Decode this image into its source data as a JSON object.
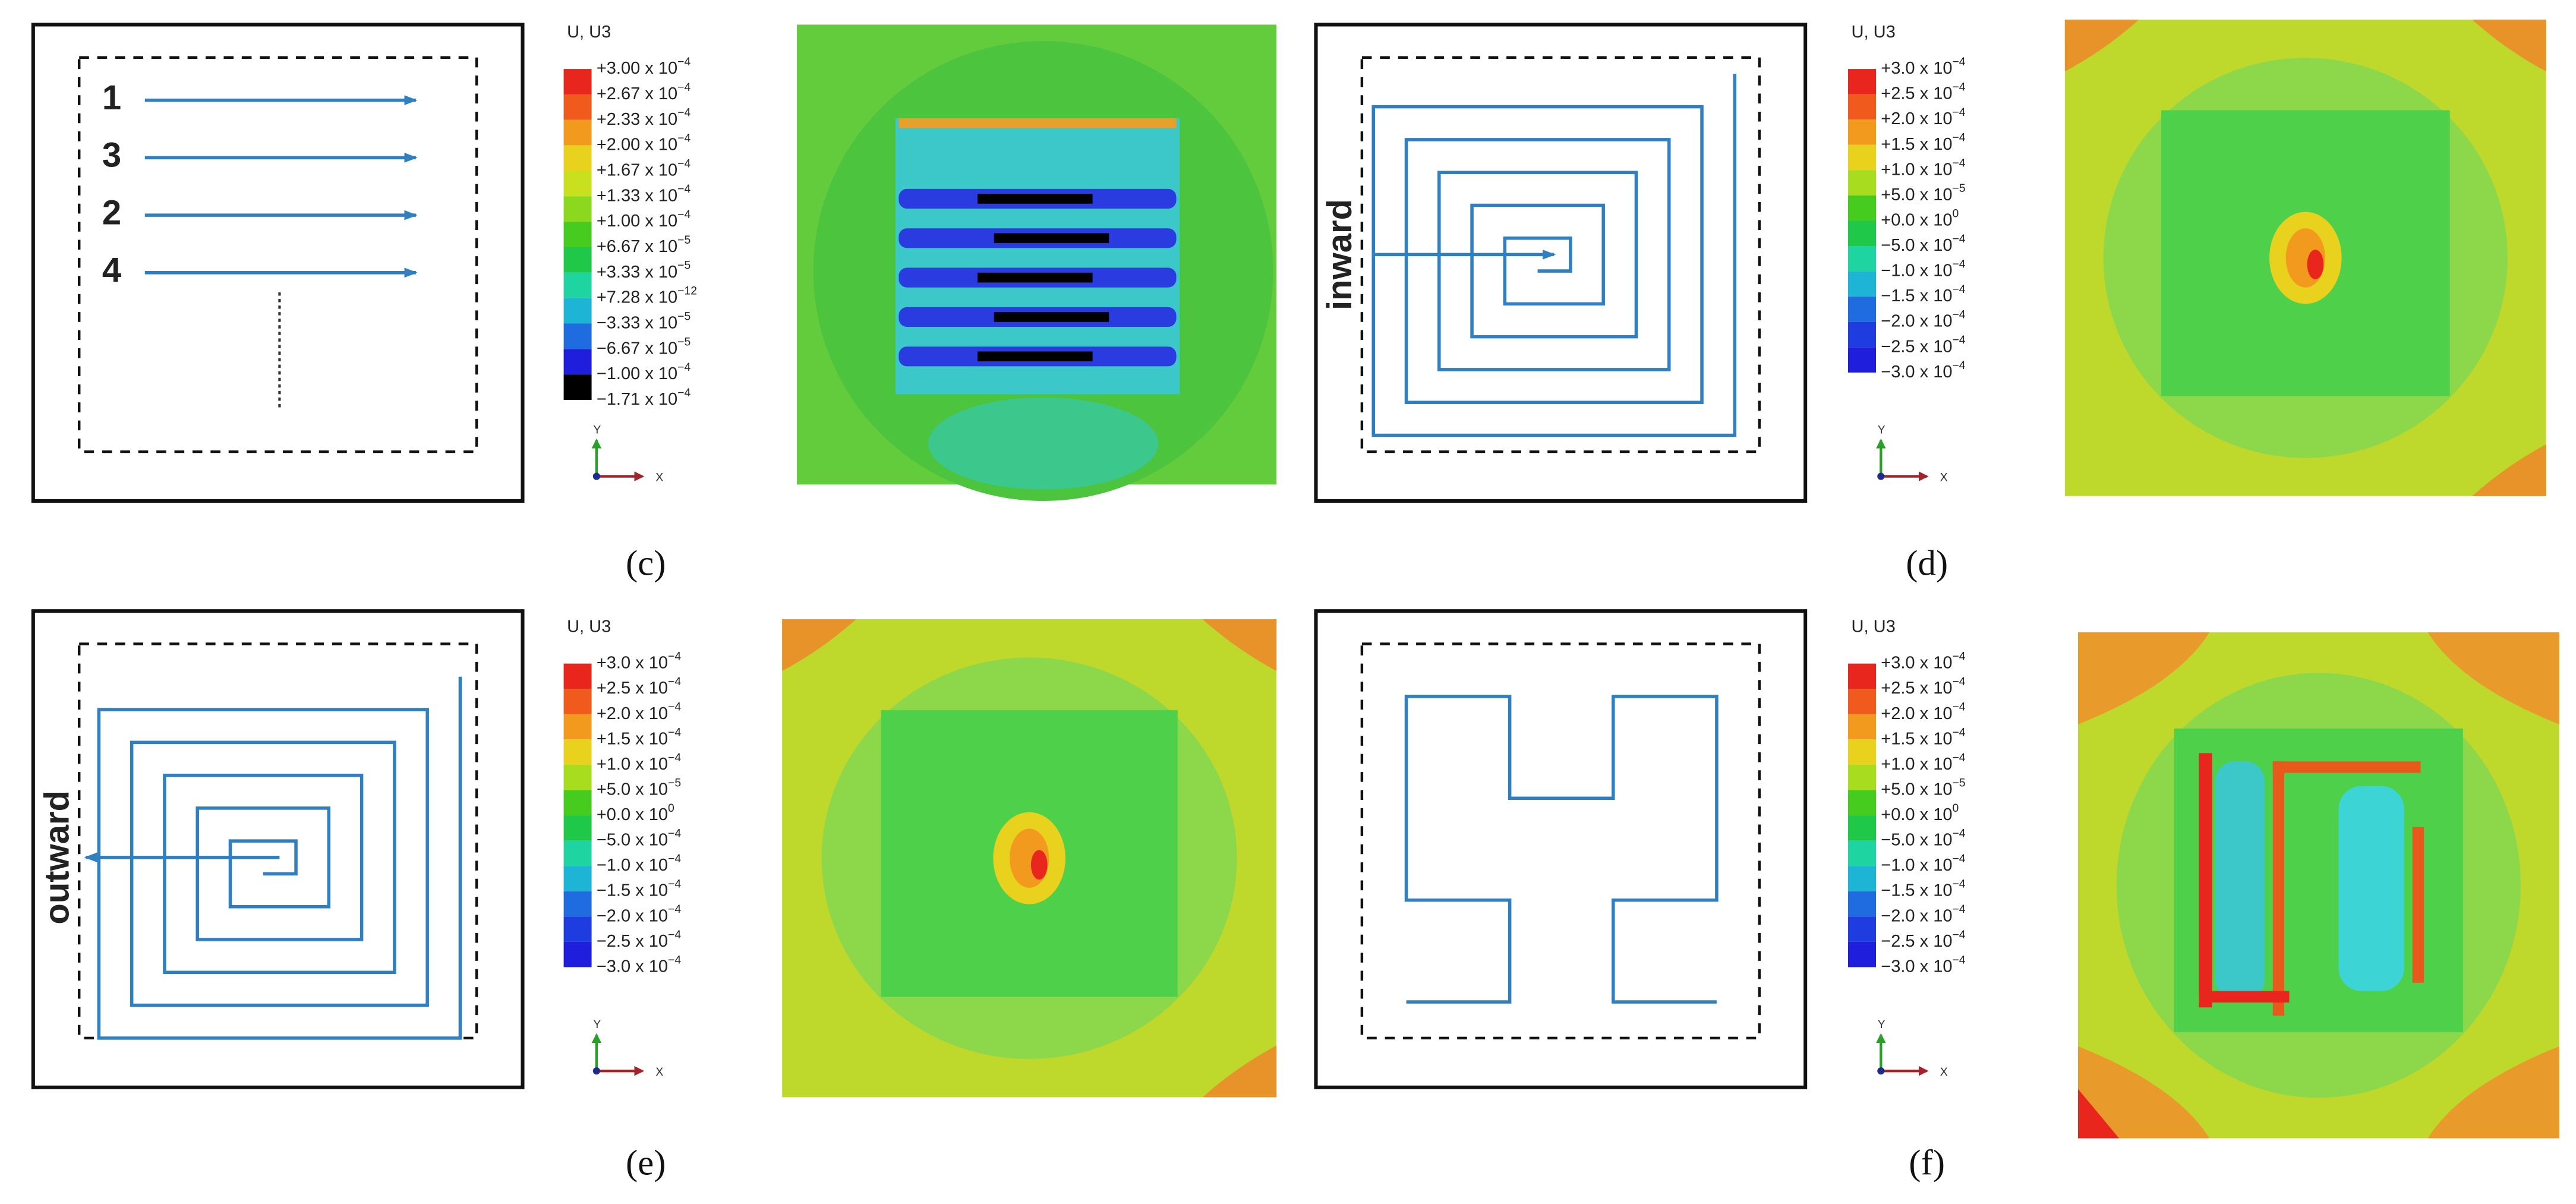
{
  "panels": [
    {
      "label": "(c)",
      "legend": {
        "title": "U, U3",
        "entries": [
          {
            "mantissa": "+3.00 x 10",
            "exponent": "−4"
          },
          {
            "mantissa": "+2.67 x 10",
            "exponent": "−4"
          },
          {
            "mantissa": "+2.33 x 10",
            "exponent": "−4"
          },
          {
            "mantissa": "+2.00 x 10",
            "exponent": "−4"
          },
          {
            "mantissa": "+1.67 x 10",
            "exponent": "−4"
          },
          {
            "mantissa": "+1.33 x 10",
            "exponent": "−4"
          },
          {
            "mantissa": "+1.00 x 10",
            "exponent": "−4"
          },
          {
            "mantissa": "+6.67 x 10",
            "exponent": "−5"
          },
          {
            "mantissa": "+3.33 x 10",
            "exponent": "−5"
          },
          {
            "mantissa": "+7.28 x 10",
            "exponent": "−12"
          },
          {
            "mantissa": "−3.33 x 10",
            "exponent": "−5"
          },
          {
            "mantissa": "−6.67 x 10",
            "exponent": "−5"
          },
          {
            "mantissa": "−1.00 x 10",
            "exponent": "−4"
          },
          {
            "mantissa": "−1.71 x 10",
            "exponent": "−4"
          }
        ]
      },
      "axes": {
        "y": "Y",
        "x": "X"
      },
      "path_labels": [
        "1",
        "3",
        "2",
        "4"
      ]
    },
    {
      "label": "(d)",
      "legend": {
        "title": "U, U3",
        "entries": [
          {
            "mantissa": "+3.0 x 10",
            "exponent": "−4"
          },
          {
            "mantissa": "+2.5 x 10",
            "exponent": "−4"
          },
          {
            "mantissa": "+2.0 x 10",
            "exponent": "−4"
          },
          {
            "mantissa": "+1.5 x 10",
            "exponent": "−4"
          },
          {
            "mantissa": "+1.0 x 10",
            "exponent": "−4"
          },
          {
            "mantissa": "+5.0 x 10",
            "exponent": "−5"
          },
          {
            "mantissa": "+0.0 x 10",
            "exponent": "0"
          },
          {
            "mantissa": "−5.0 x 10",
            "exponent": "−4"
          },
          {
            "mantissa": "−1.0 x 10",
            "exponent": "−4"
          },
          {
            "mantissa": "−1.5 x 10",
            "exponent": "−4"
          },
          {
            "mantissa": "−2.0 x 10",
            "exponent": "−4"
          },
          {
            "mantissa": "−2.5 x 10",
            "exponent": "−4"
          },
          {
            "mantissa": "−3.0 x 10",
            "exponent": "−4"
          }
        ]
      },
      "axes": {
        "y": "Y",
        "x": "X"
      },
      "path_labels": [
        "inward"
      ]
    },
    {
      "label": "(e)",
      "legend": {
        "title": "U, U3",
        "entries": [
          {
            "mantissa": "+3.0 x 10",
            "exponent": "−4"
          },
          {
            "mantissa": "+2.5 x 10",
            "exponent": "−4"
          },
          {
            "mantissa": "+2.0 x 10",
            "exponent": "−4"
          },
          {
            "mantissa": "+1.5 x 10",
            "exponent": "−4"
          },
          {
            "mantissa": "+1.0 x 10",
            "exponent": "−4"
          },
          {
            "mantissa": "+5.0 x 10",
            "exponent": "−5"
          },
          {
            "mantissa": "+0.0 x 10",
            "exponent": "0"
          },
          {
            "mantissa": "−5.0 x 10",
            "exponent": "−4"
          },
          {
            "mantissa": "−1.0 x 10",
            "exponent": "−4"
          },
          {
            "mantissa": "−1.5 x 10",
            "exponent": "−4"
          },
          {
            "mantissa": "−2.0 x 10",
            "exponent": "−4"
          },
          {
            "mantissa": "−2.5 x 10",
            "exponent": "−4"
          },
          {
            "mantissa": "−3.0 x 10",
            "exponent": "−4"
          }
        ]
      },
      "axes": {
        "y": "Y",
        "x": "X"
      },
      "path_labels": [
        "outward"
      ]
    },
    {
      "label": "(f)",
      "legend": {
        "title": "U, U3",
        "entries": [
          {
            "mantissa": "+3.0 x 10",
            "exponent": "−4"
          },
          {
            "mantissa": "+2.5 x 10",
            "exponent": "−4"
          },
          {
            "mantissa": "+2.0 x 10",
            "exponent": "−4"
          },
          {
            "mantissa": "+1.5 x 10",
            "exponent": "−4"
          },
          {
            "mantissa": "+1.0 x 10",
            "exponent": "−4"
          },
          {
            "mantissa": "+5.0 x 10",
            "exponent": "−5"
          },
          {
            "mantissa": "+0.0 x 10",
            "exponent": "0"
          },
          {
            "mantissa": "−5.0 x 10",
            "exponent": "−4"
          },
          {
            "mantissa": "−1.0 x 10",
            "exponent": "−4"
          },
          {
            "mantissa": "−1.5 x 10",
            "exponent": "−4"
          },
          {
            "mantissa": "−2.0 x 10",
            "exponent": "−4"
          },
          {
            "mantissa": "−2.5 x 10",
            "exponent": "−4"
          },
          {
            "mantissa": "−3.0 x 10",
            "exponent": "−4"
          }
        ]
      },
      "axes": {
        "y": "Y",
        "x": "X"
      }
    }
  ]
}
